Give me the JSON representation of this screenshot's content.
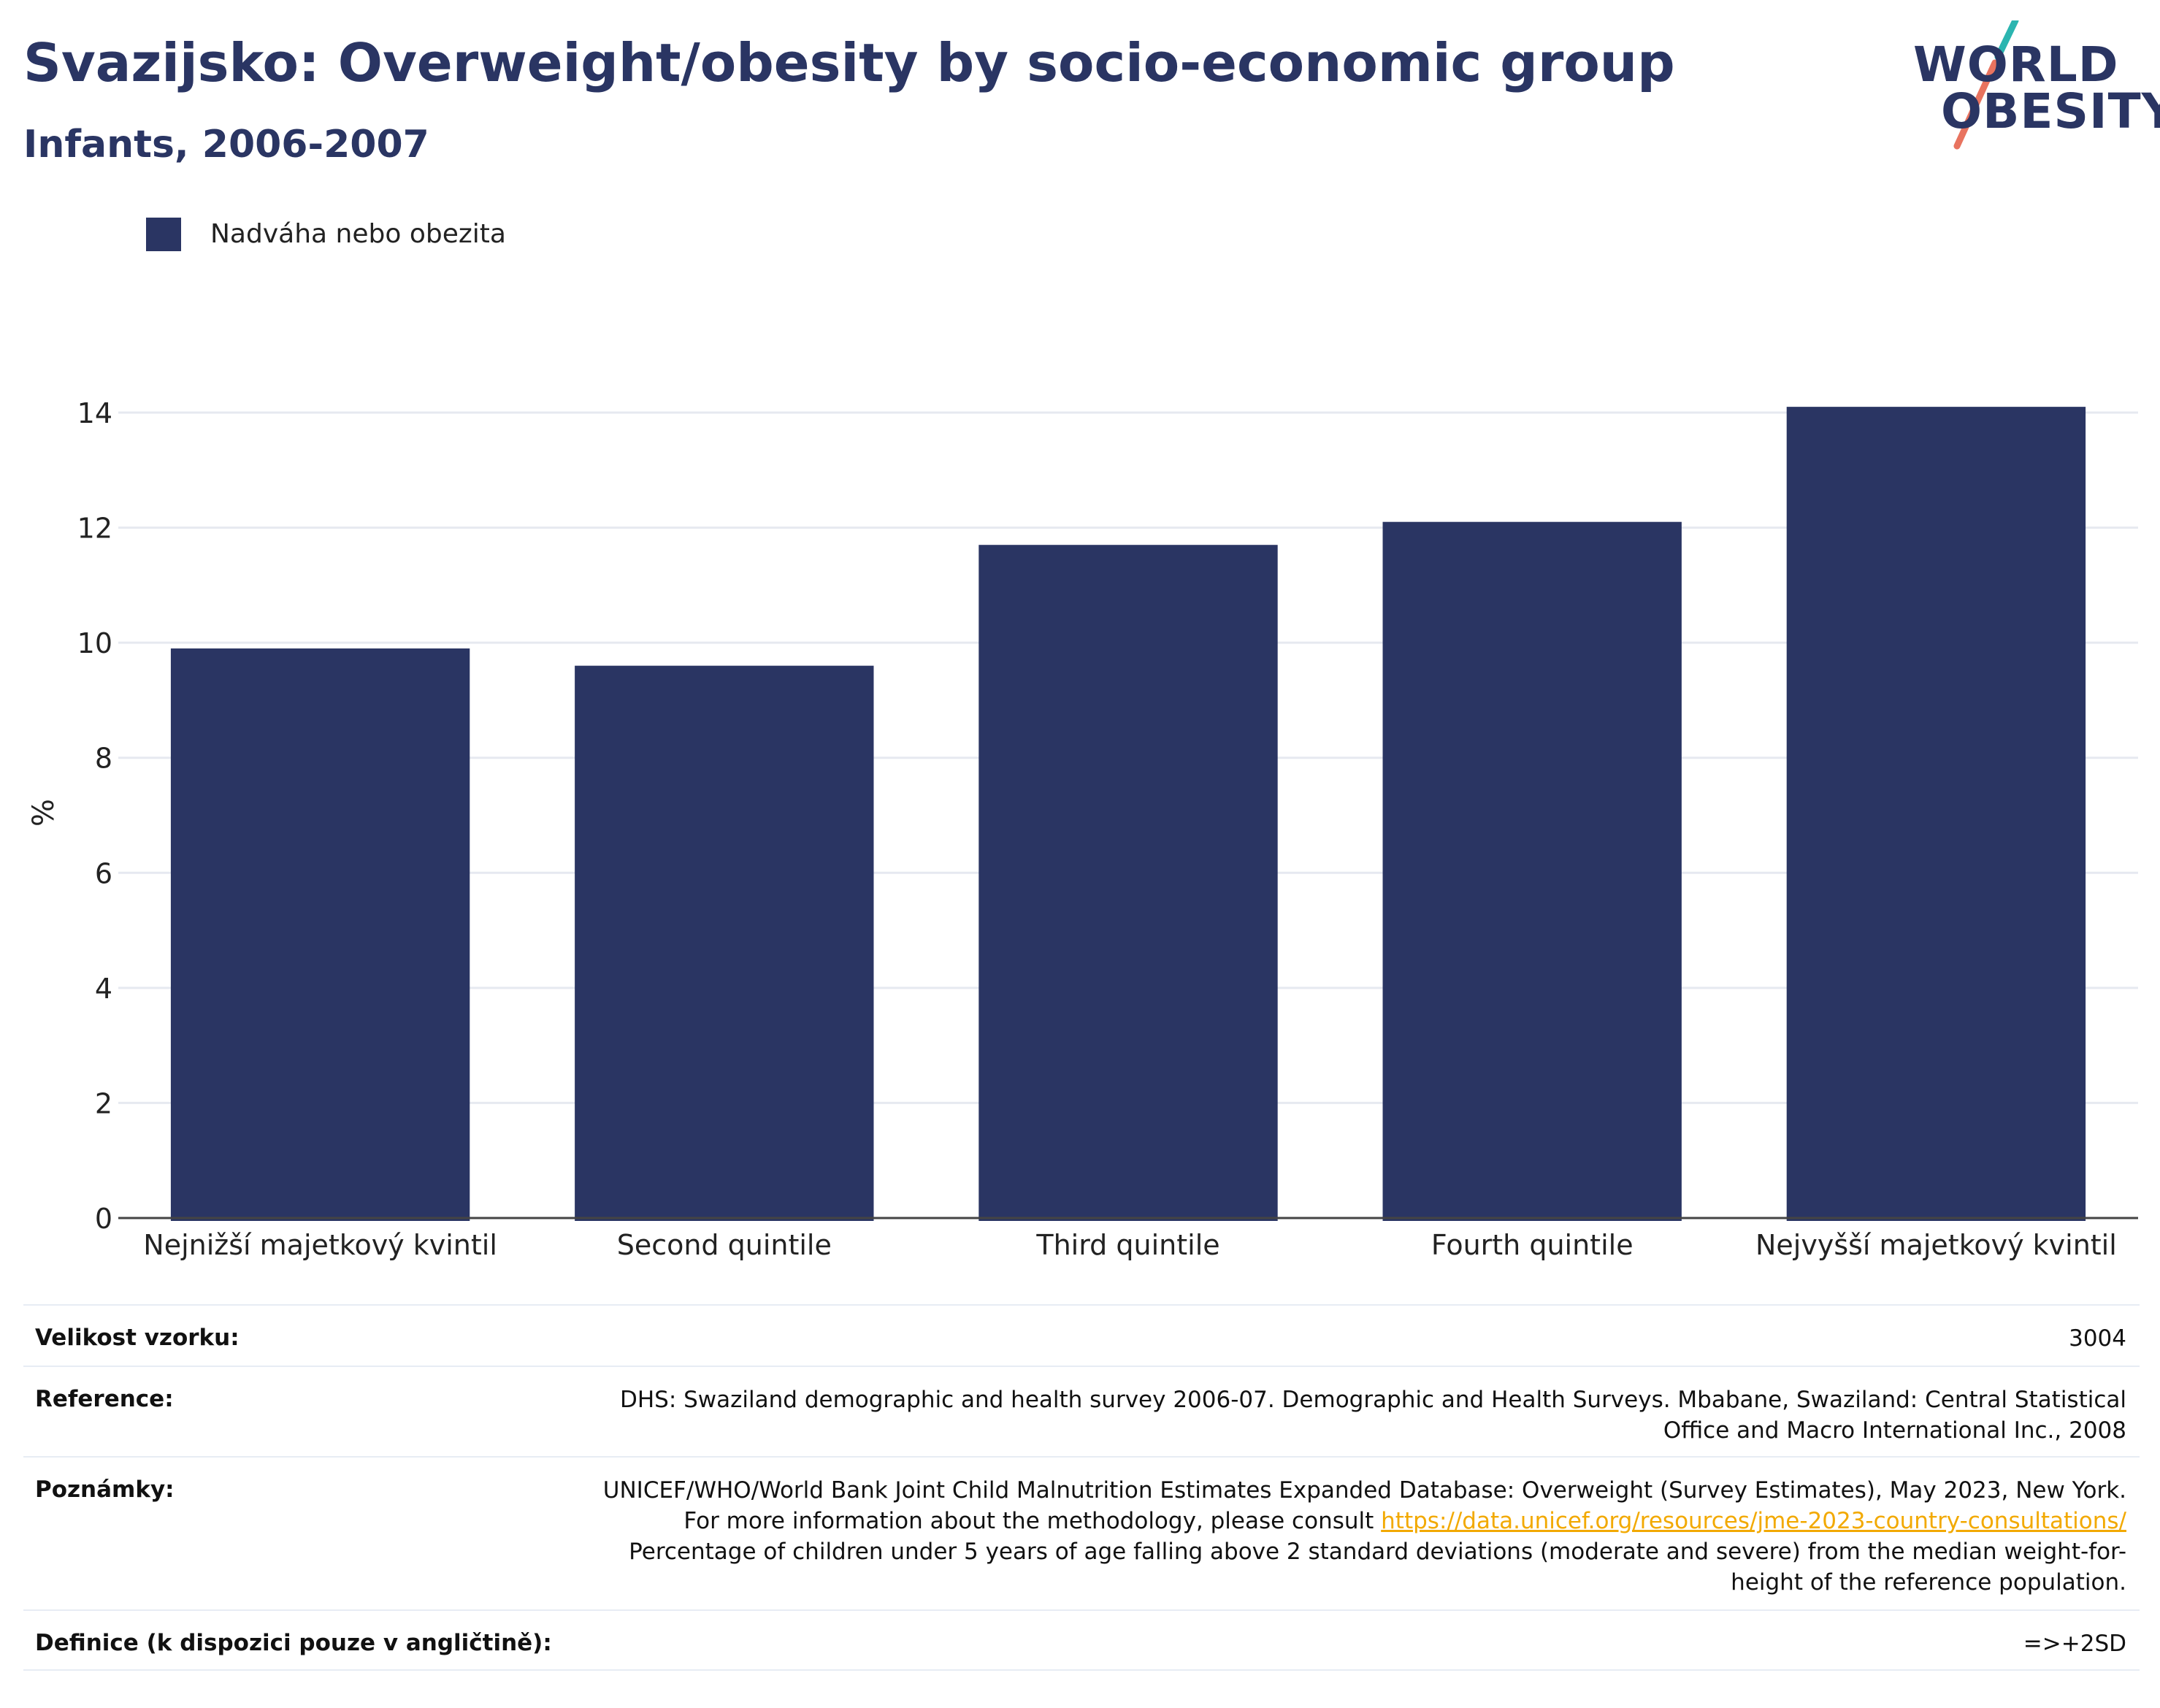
{
  "header": {
    "title": "Svazijsko: Overweight/obesity by socio-economic group",
    "subtitle": "Infants, 2006-2007"
  },
  "logo": {
    "line1": "WORLD",
    "line2": "OBESITY",
    "icon": "world-obesity-logo",
    "accent_teal": "#2bb5b0",
    "accent_coral": "#e8735f"
  },
  "legend": {
    "label": "Nadváha nebo obezita",
    "color": "#2a3563"
  },
  "chart_data": {
    "type": "bar",
    "categories": [
      "Nejnižší majetkový kvintil",
      "Second quintile",
      "Third quintile",
      "Fourth quintile",
      "Nejvyšší majetkový kvintil"
    ],
    "series": [
      {
        "name": "Nadváha nebo obezita",
        "values": [
          9.9,
          9.6,
          11.7,
          12.1,
          14.1
        ],
        "color": "#2a3563"
      }
    ],
    "ylabel": "%",
    "ylim": [
      0,
      14
    ],
    "yticks": [
      0,
      2,
      4,
      6,
      8,
      10,
      12,
      14
    ],
    "grid": true,
    "legend_position": "top-left"
  },
  "info": {
    "sample_size": {
      "label": "Velikost vzorku:",
      "value": "3004"
    },
    "reference": {
      "label": "Reference:",
      "value": "DHS: Swaziland demographic and health survey 2006-07. Demographic and Health Surveys. Mbabane, Swaziland: Central Statistical Office and Macro International Inc., 2008"
    },
    "notes": {
      "label": "Poznámky:",
      "text_before": "UNICEF/WHO/World Bank Joint Child Malnutrition Estimates Expanded Database: Overweight (Survey Estimates), May 2023, New York. For more information about the methodology, please consult",
      "link": "https://data.unicef.org/resources/jme-2023-country-consultations/",
      "text_after": "Percentage of children under 5 years of age falling above 2 standard deviations (moderate and severe) from the median weight-for-height of the reference population."
    },
    "definition": {
      "label": "Definice (k dispozici pouze v angličtině):",
      "value": "=>+2SD"
    }
  }
}
